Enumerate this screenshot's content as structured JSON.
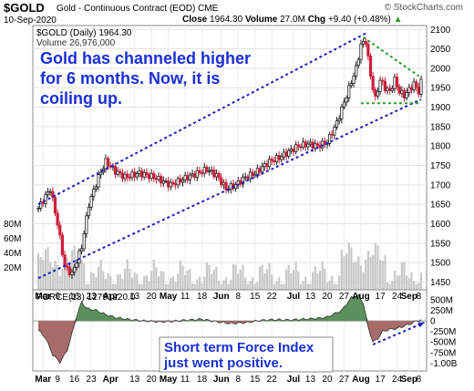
{
  "header": {
    "symbol": "$GOLD",
    "name": "Gold - Continuous Contract (EOD)",
    "exchange": "CME",
    "date": "10-Sep-2020",
    "close_label": "Close",
    "close_value": "1964.30",
    "volume_label": "Volume",
    "volume_value": "27.0M",
    "chg_label": "Chg",
    "chg_value": "+9.40 (+0.48%)",
    "chg_arrow": "▲",
    "brand": "© StockCharts.com"
  },
  "price_panel": {
    "legend_line1": "$GOLD (Daily) 1964.30",
    "legend_line2": "Volume 26,976,000",
    "annotation": [
      "Gold has channeled higher",
      "for 6 months. Now, it is",
      "coiling up."
    ]
  },
  "force_panel": {
    "legend": "FORCE(13) 12791220.0",
    "annotation": [
      "Short term Force Index",
      "just went positive."
    ]
  },
  "colors": {
    "up": "#222222",
    "down": "#cc1f3a",
    "channel": "#1f1fbf",
    "triangle": "#2a9a2a",
    "annotation_text": "#1a2fd6",
    "volume": "#c9c9c9",
    "force_fill": "#5b8f5b",
    "force_neg_fill": "#a76b6b"
  },
  "chart_data": [
    {
      "type": "candlestick",
      "title": "$GOLD (Daily) 1964.30",
      "y_ticks": [
        1450,
        1500,
        1550,
        1600,
        1650,
        1700,
        1750,
        1800,
        1850,
        1900,
        1950,
        2000,
        2050,
        2100
      ],
      "ylim": [
        1430,
        2110
      ],
      "volume_ticks": [
        "20M",
        "40M",
        "60M",
        "80M"
      ],
      "volume_ylim": [
        0,
        90
      ],
      "x_labels": [
        "Mar",
        "9",
        "16",
        "23",
        "Apr",
        "13",
        "20",
        "May",
        "11",
        "18",
        "Jun",
        "8",
        "15",
        "22",
        "Jul",
        "13",
        "20",
        "27",
        "Aug",
        "17",
        "24",
        "Sep",
        "8"
      ],
      "close_points": [
        [
          0,
          1640
        ],
        [
          5,
          1690
        ],
        [
          8,
          1600
        ],
        [
          11,
          1490
        ],
        [
          14,
          1470
        ],
        [
          18,
          1540
        ],
        [
          21,
          1650
        ],
        [
          25,
          1720
        ],
        [
          28,
          1760
        ],
        [
          32,
          1735
        ],
        [
          36,
          1720
        ],
        [
          42,
          1730
        ],
        [
          48,
          1720
        ],
        [
          55,
          1700
        ],
        [
          62,
          1720
        ],
        [
          66,
          1730
        ],
        [
          70,
          1740
        ],
        [
          74,
          1725
        ],
        [
          78,
          1690
        ],
        [
          82,
          1700
        ],
        [
          86,
          1720
        ],
        [
          90,
          1730
        ],
        [
          96,
          1760
        ],
        [
          100,
          1770
        ],
        [
          104,
          1785
        ],
        [
          108,
          1800
        ],
        [
          112,
          1805
        ],
        [
          116,
          1800
        ],
        [
          120,
          1810
        ],
        [
          124,
          1860
        ],
        [
          128,
          1930
        ],
        [
          132,
          2000
        ],
        [
          134,
          2060
        ],
        [
          136,
          2070
        ],
        [
          138,
          1980
        ],
        [
          140,
          1920
        ],
        [
          142,
          1970
        ],
        [
          144,
          1950
        ],
        [
          146,
          1940
        ],
        [
          148,
          1970
        ],
        [
          150,
          1940
        ],
        [
          152,
          1930
        ],
        [
          154,
          1945
        ],
        [
          156,
          1960
        ],
        [
          158,
          1940
        ],
        [
          159,
          1964.3
        ]
      ],
      "channel_upper": [
        [
          0,
          1650
        ],
        [
          136,
          2090
        ]
      ],
      "channel_lower": [
        [
          0,
          1460
        ],
        [
          159,
          1920
        ]
      ],
      "triangle_upper": [
        [
          135,
          2080
        ],
        [
          158,
          1980
        ]
      ],
      "triangle_lower": [
        [
          134,
          1910
        ],
        [
          158,
          1910
        ]
      ]
    },
    {
      "type": "area",
      "title": "FORCE(13) 12791220.0",
      "y_ticks": [
        "500M",
        "250M",
        "0",
        "-250M",
        "-500M",
        "-750M",
        "-1.00B"
      ],
      "ylim": [
        -1100,
        650
      ],
      "points": [
        [
          0,
          -220
        ],
        [
          3,
          -400
        ],
        [
          6,
          -800
        ],
        [
          9,
          -980
        ],
        [
          12,
          -700
        ],
        [
          14,
          -300
        ],
        [
          16,
          120
        ],
        [
          18,
          450
        ],
        [
          20,
          300
        ],
        [
          24,
          250
        ],
        [
          28,
          150
        ],
        [
          32,
          80
        ],
        [
          38,
          30
        ],
        [
          44,
          0
        ],
        [
          50,
          -20
        ],
        [
          56,
          -10
        ],
        [
          62,
          20
        ],
        [
          68,
          40
        ],
        [
          74,
          -20
        ],
        [
          80,
          -60
        ],
        [
          86,
          -40
        ],
        [
          92,
          10
        ],
        [
          98,
          30
        ],
        [
          104,
          20
        ],
        [
          110,
          40
        ],
        [
          116,
          60
        ],
        [
          120,
          90
        ],
        [
          126,
          250
        ],
        [
          130,
          550
        ],
        [
          133,
          600
        ],
        [
          135,
          420
        ],
        [
          137,
          -150
        ],
        [
          139,
          -500
        ],
        [
          141,
          -420
        ],
        [
          143,
          -250
        ],
        [
          146,
          -200
        ],
        [
          149,
          -180
        ],
        [
          152,
          -120
        ],
        [
          155,
          -60
        ],
        [
          157,
          0
        ],
        [
          159,
          20
        ]
      ]
    }
  ]
}
